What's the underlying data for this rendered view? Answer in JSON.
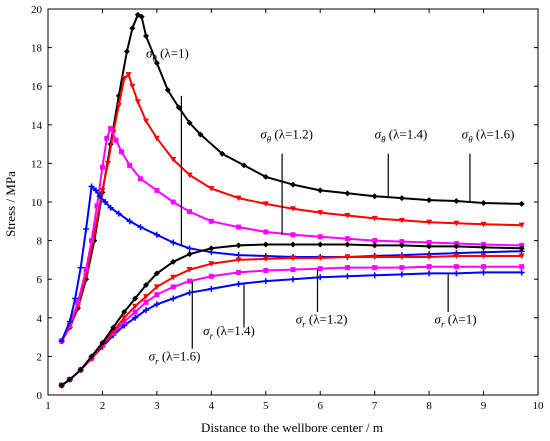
{
  "chart_data": {
    "type": "line",
    "title": "",
    "xlabel": "Distance to the wellbore center / m",
    "ylabel": "Stress / MPa",
    "xlim": [
      1,
      10
    ],
    "ylim": [
      0,
      20
    ],
    "xticks": [
      1,
      2,
      3,
      4,
      5,
      6,
      7,
      8,
      9,
      10
    ],
    "yticks": [
      0,
      2,
      4,
      6,
      8,
      10,
      12,
      14,
      16,
      18,
      20
    ],
    "grid": false,
    "legend": "none (curves labelled by annotations)",
    "series": [
      {
        "name": "σθ (λ=1)",
        "color": "#000000",
        "marker": "diamond",
        "x": [
          1.25,
          1.4,
          1.55,
          1.7,
          1.85,
          2.0,
          2.15,
          2.3,
          2.45,
          2.55,
          2.65,
          2.72,
          2.8,
          3.0,
          3.2,
          3.4,
          3.6,
          3.8,
          4.2,
          4.6,
          5.0,
          5.5,
          6.0,
          6.5,
          7.0,
          7.5,
          8.0,
          8.5,
          9.0,
          9.7
        ],
        "y": [
          2.8,
          3.5,
          4.5,
          6.0,
          8.0,
          10.5,
          13.0,
          15.5,
          17.8,
          19.0,
          19.7,
          19.6,
          18.6,
          17.2,
          15.8,
          14.9,
          14.1,
          13.5,
          12.5,
          11.9,
          11.3,
          10.9,
          10.6,
          10.45,
          10.3,
          10.2,
          10.1,
          10.05,
          9.95,
          9.9
        ]
      },
      {
        "name": "σθ (λ=1.2)",
        "color": "#ff0000",
        "marker": "triangle-down",
        "x": [
          1.25,
          1.4,
          1.55,
          1.7,
          1.85,
          2.0,
          2.1,
          2.2,
          2.3,
          2.4,
          2.48,
          2.55,
          2.65,
          2.8,
          3.0,
          3.3,
          3.6,
          4.0,
          4.5,
          5.0,
          5.5,
          6.0,
          6.5,
          7.0,
          7.5,
          8.0,
          8.5,
          9.0,
          9.7
        ],
        "y": [
          2.8,
          3.5,
          4.6,
          6.2,
          8.3,
          10.6,
          12.0,
          13.6,
          15.0,
          16.4,
          16.6,
          16.0,
          15.2,
          14.2,
          13.3,
          12.2,
          11.4,
          10.7,
          10.2,
          9.9,
          9.65,
          9.45,
          9.3,
          9.15,
          9.05,
          8.95,
          8.9,
          8.85,
          8.8
        ]
      },
      {
        "name": "σθ (λ=1.4)",
        "color": "#ff00ff",
        "marker": "square",
        "x": [
          1.25,
          1.4,
          1.55,
          1.7,
          1.8,
          1.9,
          2.0,
          2.08,
          2.15,
          2.25,
          2.35,
          2.5,
          2.7,
          3.0,
          3.3,
          3.6,
          4.0,
          4.5,
          5.0,
          5.5,
          6.0,
          6.5,
          7.0,
          7.5,
          8.0,
          8.5,
          9.0,
          9.7
        ],
        "y": [
          2.8,
          3.6,
          4.8,
          6.5,
          8.0,
          9.8,
          11.8,
          13.3,
          13.8,
          13.2,
          12.6,
          11.9,
          11.2,
          10.6,
          10.0,
          9.5,
          9.0,
          8.7,
          8.45,
          8.3,
          8.2,
          8.1,
          8.0,
          7.95,
          7.9,
          7.85,
          7.8,
          7.75
        ]
      },
      {
        "name": "σθ (λ=1.6)",
        "color": "#0000ff",
        "marker": "plus",
        "x": [
          1.25,
          1.4,
          1.5,
          1.6,
          1.7,
          1.8,
          1.88,
          1.95,
          2.05,
          2.15,
          2.3,
          2.5,
          2.7,
          3.0,
          3.3,
          3.6,
          4.0,
          4.5,
          5.0,
          5.5,
          6.0,
          6.5,
          7.0,
          7.5,
          8.0,
          8.5,
          9.0,
          9.7
        ],
        "y": [
          2.8,
          3.8,
          5.0,
          6.6,
          8.6,
          10.8,
          10.6,
          10.3,
          10.0,
          9.7,
          9.4,
          9.0,
          8.7,
          8.3,
          7.9,
          7.6,
          7.4,
          7.25,
          7.2,
          7.15,
          7.15,
          7.15,
          7.2,
          7.25,
          7.3,
          7.35,
          7.4,
          7.45
        ]
      },
      {
        "name": "σr (λ=1)",
        "color": "#0000ff",
        "marker": "plus",
        "x": [
          1.25,
          1.4,
          1.6,
          1.8,
          2.0,
          2.2,
          2.4,
          2.6,
          2.8,
          3.0,
          3.3,
          3.6,
          4.0,
          4.5,
          5.0,
          5.5,
          6.0,
          6.5,
          7.0,
          7.5,
          8.0,
          8.5,
          9.0,
          9.7
        ],
        "y": [
          0.5,
          0.8,
          1.3,
          1.9,
          2.5,
          3.1,
          3.6,
          4.0,
          4.4,
          4.7,
          5.0,
          5.3,
          5.5,
          5.75,
          5.9,
          6.0,
          6.1,
          6.15,
          6.2,
          6.25,
          6.3,
          6.3,
          6.35,
          6.35
        ]
      },
      {
        "name": "σr (λ=1.2)",
        "color": "#ff00ff",
        "marker": "square",
        "x": [
          1.25,
          1.4,
          1.6,
          1.8,
          2.0,
          2.2,
          2.4,
          2.6,
          2.8,
          3.0,
          3.3,
          3.6,
          4.0,
          4.5,
          5.0,
          5.5,
          6.0,
          6.5,
          7.0,
          7.5,
          8.0,
          8.5,
          9.0,
          9.7
        ],
        "y": [
          0.5,
          0.8,
          1.3,
          1.9,
          2.6,
          3.2,
          3.8,
          4.3,
          4.8,
          5.2,
          5.6,
          5.9,
          6.15,
          6.35,
          6.45,
          6.5,
          6.55,
          6.6,
          6.6,
          6.6,
          6.65,
          6.65,
          6.65,
          6.65
        ]
      },
      {
        "name": "σr (λ=1.4)",
        "color": "#ff0000",
        "marker": "triangle-down",
        "x": [
          1.25,
          1.4,
          1.6,
          1.8,
          2.0,
          2.2,
          2.4,
          2.6,
          2.8,
          3.0,
          3.3,
          3.6,
          4.0,
          4.5,
          5.0,
          5.5,
          6.0,
          6.5,
          7.0,
          7.5,
          8.0,
          8.5,
          9.0,
          9.7
        ],
        "y": [
          0.5,
          0.8,
          1.3,
          1.9,
          2.6,
          3.3,
          4.0,
          4.6,
          5.1,
          5.6,
          6.1,
          6.5,
          6.8,
          7.0,
          7.05,
          7.1,
          7.1,
          7.15,
          7.15,
          7.15,
          7.15,
          7.2,
          7.2,
          7.2
        ]
      },
      {
        "name": "σr (λ=1.6)",
        "color": "#000000",
        "marker": "diamond",
        "x": [
          1.25,
          1.4,
          1.6,
          1.8,
          2.0,
          2.2,
          2.4,
          2.6,
          2.8,
          3.0,
          3.3,
          3.6,
          4.0,
          4.5,
          5.0,
          5.5,
          6.0,
          6.5,
          7.0,
          7.5,
          8.0,
          8.5,
          9.0,
          9.7
        ],
        "y": [
          0.5,
          0.8,
          1.3,
          2.0,
          2.7,
          3.5,
          4.3,
          5.0,
          5.7,
          6.3,
          6.9,
          7.3,
          7.6,
          7.75,
          7.8,
          7.8,
          7.8,
          7.8,
          7.75,
          7.75,
          7.7,
          7.7,
          7.65,
          7.6
        ]
      }
    ],
    "annotations": [
      {
        "sym": "σ",
        "sub": "θ",
        "text": "(λ=1)",
        "tx": 2.8,
        "ty": 17.5,
        "ax": 3.45,
        "ay": 15.5,
        "bx": 3.45,
        "by": 7.8
      },
      {
        "sym": "σ",
        "sub": "θ",
        "text": "(λ=1.2)",
        "tx": 4.9,
        "ty": 13.3,
        "ax": 5.3,
        "ay": 12.5,
        "bx": 5.3,
        "by": 8.3
      },
      {
        "sym": "σ",
        "sub": "θ",
        "text": "(λ=1.4)",
        "tx": 7.0,
        "ty": 13.3,
        "ax": 7.25,
        "ay": 12.5,
        "bx": 7.25,
        "by": 10.3
      },
      {
        "sym": "σ",
        "sub": "θ",
        "text": "(λ=1.6)",
        "tx": 8.6,
        "ty": 13.3,
        "ax": 8.75,
        "ay": 12.5,
        "bx": 8.75,
        "by": 9.95
      },
      {
        "sym": "σ",
        "sub": "r",
        "text": "(λ=1.2)",
        "tx": 5.55,
        "ty": 3.7,
        "ax": 5.95,
        "ay": 4.3,
        "bx": 5.95,
        "by": 6.5
      },
      {
        "sym": "σ",
        "sub": "r",
        "text": "(λ=1.4)",
        "tx": 3.85,
        "ty": 3.1,
        "ax": 4.6,
        "ay": 3.5,
        "bx": 4.6,
        "by": 5.75
      },
      {
        "sym": "σ",
        "sub": "r",
        "text": "(λ=1)",
        "tx": 8.1,
        "ty": 3.7,
        "ax": 8.35,
        "ay": 4.3,
        "bx": 8.35,
        "by": 6.3
      },
      {
        "sym": "σ",
        "sub": "r",
        "text": "(λ=1.6)",
        "tx": 2.85,
        "ty": 1.8,
        "ax": 3.65,
        "ay": 2.4,
        "bx": 3.65,
        "by": 5.9
      }
    ]
  }
}
